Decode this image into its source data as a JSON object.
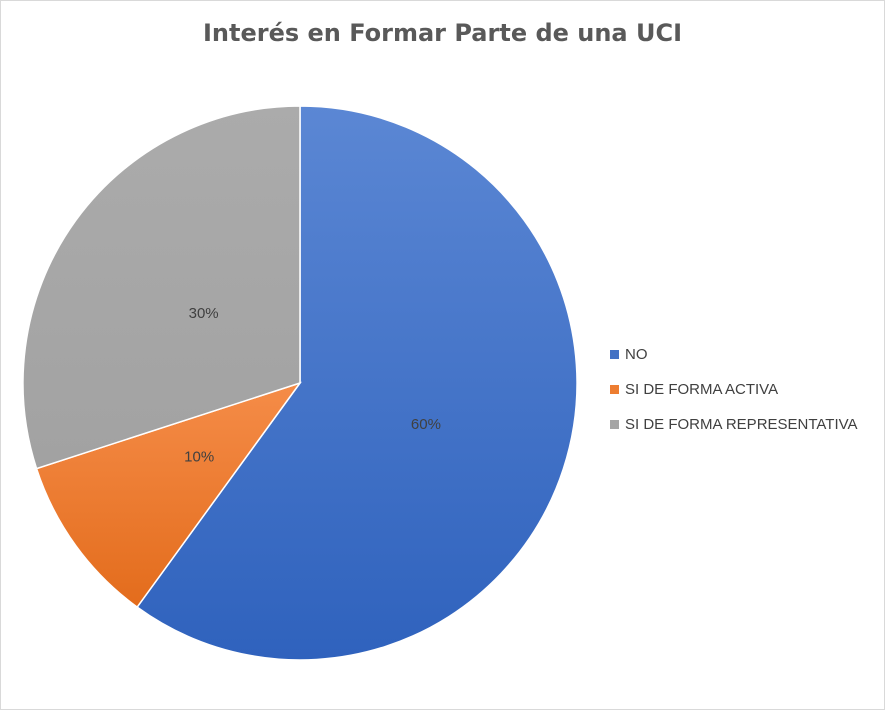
{
  "chart_data": {
    "type": "pie",
    "title": "Interés en Formar Parte de una UCI",
    "categories": [
      "NO",
      "SI DE FORMA ACTIVA",
      "SI DE FORMA REPRESENTATIVA"
    ],
    "values": [
      60,
      10,
      30
    ],
    "data_labels": [
      "60%",
      "10%",
      "30%"
    ],
    "colors": [
      "#4472C4",
      "#ED7D31",
      "#A5A5A5"
    ],
    "legend_position": "right",
    "start_angle_deg": 0,
    "direction": "clockwise"
  }
}
